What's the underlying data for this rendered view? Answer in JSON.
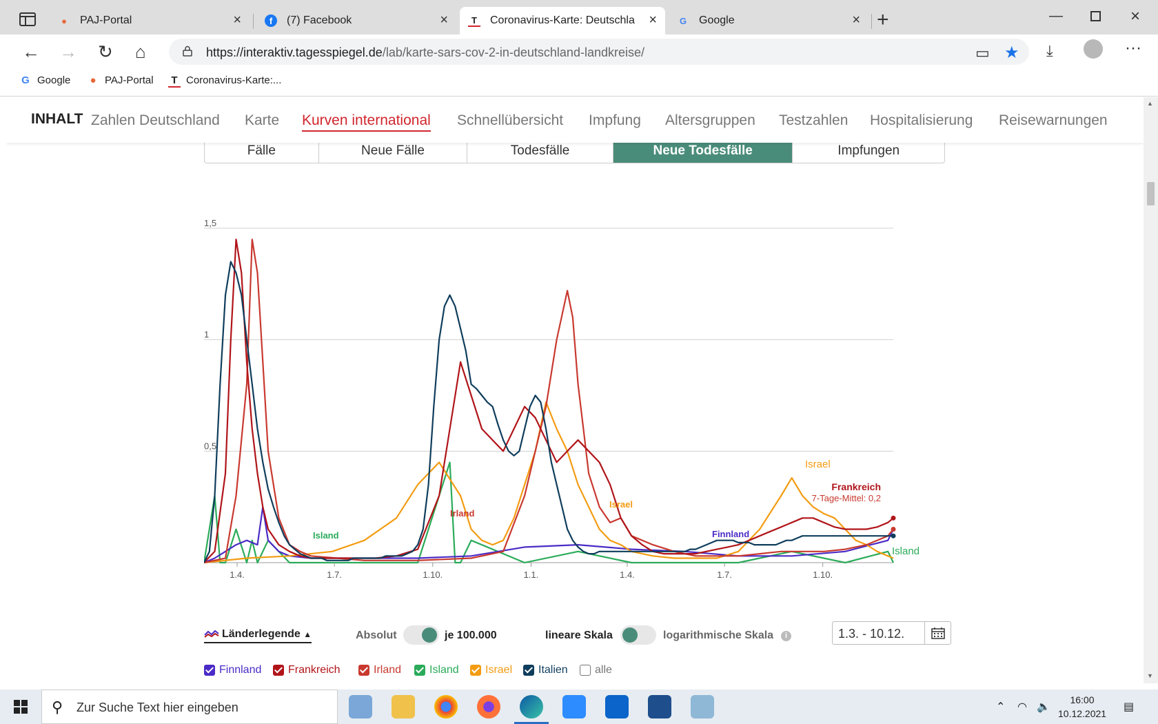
{
  "browser": {
    "tabs": [
      {
        "label": "PAJ-Portal",
        "icon": "location-pin-icon",
        "active": false
      },
      {
        "label": "(7) Facebook",
        "icon": "facebook-icon",
        "active": false
      },
      {
        "label": "Coronavirus-Karte: Deutschlandw",
        "icon": "tagesspiegel-icon",
        "active": true
      },
      {
        "label": "Google",
        "icon": "google-icon",
        "active": false
      }
    ],
    "url_host": "https://interaktiv.tagesspiegel.de",
    "url_path": "/lab/karte-sars-cov-2-in-deutschland-landkreise/",
    "bookmarks": [
      {
        "label": "Google",
        "icon": "google-icon"
      },
      {
        "label": "PAJ-Portal",
        "icon": "location-pin-icon"
      },
      {
        "label": "Coronavirus-Karte:...",
        "icon": "tagesspiegel-icon"
      }
    ]
  },
  "topnav": {
    "brand": "INHALT",
    "items": [
      "Zahlen Deutschland",
      "Karte",
      "Kurven international",
      "Schnellübersicht",
      "Impfung",
      "Altersgruppen",
      "Testzahlen",
      "Hospitalisierung",
      "Reisewarnungen"
    ],
    "active_index": 2
  },
  "segtabs": {
    "items": [
      "Fälle",
      "Neue Fälle",
      "Todesfälle",
      "Neue Todesfälle",
      "Impfungen"
    ],
    "active_index": 3
  },
  "chart_data": {
    "type": "line",
    "title": "",
    "xlabel": "",
    "ylabel": "",
    "ylim": [
      0,
      1.5
    ],
    "y_ticks": [
      "0,5",
      "1",
      "1,5"
    ],
    "x_ticks": [
      "1.4.",
      "1.7.",
      "1.10.",
      "1.1.",
      "1.4.",
      "1.7.",
      "1.10."
    ],
    "grid": true,
    "series": [
      {
        "name": "Italien",
        "color": "#0f3d5c",
        "x": [
          0,
          5,
          10,
          15,
          20,
          25,
          30,
          35,
          40,
          45,
          50,
          55,
          60,
          65,
          70,
          75,
          80,
          85,
          90,
          95,
          100,
          105,
          110,
          115,
          120,
          125,
          130,
          135,
          140,
          145,
          150,
          155,
          160,
          165,
          170,
          175,
          180,
          185,
          190,
          195,
          200,
          205,
          210,
          215,
          220,
          225,
          230,
          235,
          240,
          245,
          250,
          255,
          260,
          265,
          270,
          275,
          280,
          285,
          290,
          295,
          300,
          305,
          310,
          315,
          320,
          325,
          330,
          335,
          340,
          345,
          350,
          355,
          360,
          365,
          370,
          375,
          380,
          385,
          390,
          395,
          400,
          405,
          410,
          415,
          420,
          425,
          430,
          435,
          440,
          445,
          450,
          455,
          460,
          465,
          470,
          475,
          480,
          485,
          490,
          495,
          500,
          505,
          510,
          515,
          520,
          525,
          530,
          535,
          540,
          545,
          550,
          555,
          560,
          565,
          570,
          575,
          580,
          585,
          590,
          595,
          600,
          605,
          610,
          615,
          620,
          625,
          630,
          635,
          640,
          645
        ],
        "y": [
          0,
          0.05,
          0.3,
          0.8,
          1.2,
          1.35,
          1.3,
          1.2,
          1.0,
          0.8,
          0.6,
          0.45,
          0.33,
          0.25,
          0.18,
          0.12,
          0.08,
          0.06,
          0.04,
          0.03,
          0.02,
          0.02,
          0.02,
          0.01,
          0.01,
          0.01,
          0.01,
          0.01,
          0.02,
          0.02,
          0.02,
          0.02,
          0.02,
          0.02,
          0.03,
          0.03,
          0.03,
          0.03,
          0.04,
          0.05,
          0.08,
          0.15,
          0.35,
          0.7,
          1.0,
          1.15,
          1.2,
          1.15,
          1.05,
          0.95,
          0.8,
          0.78,
          0.75,
          0.72,
          0.7,
          0.62,
          0.55,
          0.5,
          0.48,
          0.5,
          0.6,
          0.7,
          0.75,
          0.72,
          0.6,
          0.45,
          0.35,
          0.25,
          0.15,
          0.1,
          0.07,
          0.05,
          0.04,
          0.04,
          0.05,
          0.05,
          0.05,
          0.05,
          0.05,
          0.05,
          0.05,
          0.05,
          0.05,
          0.05,
          0.05,
          0.05,
          0.05,
          0.05,
          0.05,
          0.05,
          0.05,
          0.06,
          0.06,
          0.07,
          0.08,
          0.09,
          0.1,
          0.1,
          0.1,
          0.1,
          0.09,
          0.09,
          0.09,
          0.08,
          0.08,
          0.08,
          0.08,
          0.08,
          0.09,
          0.1,
          0.1,
          0.11,
          0.12,
          0.12,
          0.12,
          0.12,
          0.12,
          0.12,
          0.12,
          0.12,
          0.12,
          0.12,
          0.12,
          0.12,
          0.12,
          0.12,
          0.12,
          0.12,
          0.12,
          0.12
        ]
      },
      {
        "name": "Frankreich",
        "color": "#b01419",
        "x": [
          0,
          10,
          20,
          25,
          30,
          35,
          40,
          45,
          50,
          55,
          60,
          70,
          80,
          90,
          100,
          120,
          140,
          160,
          180,
          200,
          220,
          230,
          240,
          250,
          260,
          270,
          280,
          290,
          300,
          310,
          320,
          330,
          340,
          350,
          360,
          370,
          380,
          390,
          400,
          410,
          420,
          430,
          440,
          450,
          460,
          470,
          480,
          490,
          500,
          510,
          520,
          530,
          540,
          550,
          560,
          570,
          580,
          590,
          600,
          610,
          620,
          630,
          640,
          645
        ],
        "y": [
          0,
          0.05,
          0.4,
          1.0,
          1.45,
          1.3,
          0.9,
          0.6,
          0.4,
          0.25,
          0.15,
          0.08,
          0.05,
          0.03,
          0.02,
          0.02,
          0.02,
          0.02,
          0.03,
          0.06,
          0.3,
          0.6,
          0.9,
          0.75,
          0.6,
          0.55,
          0.5,
          0.6,
          0.7,
          0.65,
          0.55,
          0.45,
          0.5,
          0.55,
          0.5,
          0.45,
          0.35,
          0.2,
          0.12,
          0.08,
          0.05,
          0.04,
          0.04,
          0.04,
          0.04,
          0.05,
          0.06,
          0.07,
          0.08,
          0.1,
          0.12,
          0.14,
          0.16,
          0.18,
          0.2,
          0.2,
          0.18,
          0.16,
          0.15,
          0.15,
          0.15,
          0.16,
          0.18,
          0.2
        ]
      },
      {
        "name": "Irland",
        "color": "#c8392f",
        "x": [
          0,
          20,
          30,
          40,
          45,
          50,
          55,
          60,
          70,
          80,
          90,
          100,
          150,
          200,
          250,
          280,
          300,
          320,
          330,
          340,
          345,
          350,
          355,
          360,
          370,
          380,
          390,
          400,
          420,
          440,
          460,
          480,
          500,
          520,
          540,
          560,
          580,
          600,
          620,
          640,
          645
        ],
        "y": [
          0,
          0.02,
          0.3,
          0.8,
          1.45,
          1.3,
          0.9,
          0.5,
          0.2,
          0.08,
          0.05,
          0.03,
          0.01,
          0.01,
          0.02,
          0.05,
          0.3,
          0.7,
          1.0,
          1.22,
          1.1,
          0.8,
          0.6,
          0.4,
          0.25,
          0.18,
          0.2,
          0.12,
          0.08,
          0.05,
          0.03,
          0.03,
          0.03,
          0.04,
          0.05,
          0.05,
          0.05,
          0.06,
          0.08,
          0.12,
          0.15
        ]
      },
      {
        "name": "Israel",
        "color": "#f39c12",
        "x": [
          0,
          40,
          80,
          120,
          150,
          180,
          200,
          220,
          240,
          250,
          260,
          270,
          280,
          290,
          300,
          310,
          320,
          330,
          340,
          350,
          360,
          370,
          380,
          390,
          400,
          420,
          440,
          460,
          480,
          500,
          520,
          540,
          550,
          560,
          570,
          580,
          590,
          600,
          610,
          620,
          630,
          640,
          645
        ],
        "y": [
          0,
          0.02,
          0.03,
          0.05,
          0.1,
          0.2,
          0.35,
          0.45,
          0.3,
          0.15,
          0.1,
          0.08,
          0.1,
          0.2,
          0.35,
          0.5,
          0.72,
          0.6,
          0.5,
          0.35,
          0.25,
          0.15,
          0.1,
          0.08,
          0.05,
          0.03,
          0.02,
          0.02,
          0.02,
          0.05,
          0.15,
          0.3,
          0.38,
          0.3,
          0.25,
          0.22,
          0.2,
          0.15,
          0.1,
          0.08,
          0.05,
          0.03,
          0.02
        ]
      },
      {
        "name": "Finnland",
        "color": "#4b2bc6",
        "x": [
          0,
          10,
          20,
          30,
          40,
          50,
          55,
          60,
          70,
          80,
          100,
          150,
          200,
          250,
          300,
          350,
          400,
          450,
          500,
          550,
          600,
          640,
          645
        ],
        "y": [
          0,
          0.02,
          0.05,
          0.08,
          0.1,
          0.08,
          0.25,
          0.1,
          0.05,
          0.03,
          0.02,
          0.02,
          0.02,
          0.03,
          0.07,
          0.08,
          0.06,
          0.05,
          0.03,
          0.03,
          0.05,
          0.1,
          0.15
        ]
      },
      {
        "name": "Island",
        "color": "#2bab5a",
        "x": [
          0,
          10,
          15,
          20,
          30,
          40,
          45,
          50,
          60,
          80,
          100,
          150,
          200,
          230,
          235,
          240,
          250,
          300,
          350,
          400,
          450,
          500,
          550,
          600,
          640,
          645
        ],
        "y": [
          0,
          0.3,
          0,
          0,
          0.15,
          0,
          0.1,
          0,
          0.1,
          0,
          0,
          0,
          0,
          0.45,
          0,
          0,
          0.1,
          0,
          0.05,
          0,
          0,
          0,
          0.05,
          0,
          0.05,
          0
        ]
      }
    ],
    "annotations": [
      {
        "text": "Israel",
        "color": "#f39c12"
      },
      {
        "text": "Frankreich",
        "color": "#b01419"
      },
      {
        "text": "7-Tage-Mittel: 0,2",
        "color": "#c8392f"
      },
      {
        "text": "Island",
        "color": "#2bab5a"
      },
      {
        "text": "Irland",
        "color": "#c8392f"
      },
      {
        "text": "Israel",
        "color": "#f39c12"
      },
      {
        "text": "Finnland",
        "color": "#4b2bc6"
      },
      {
        "text": "Island",
        "color": "#2bab5a"
      }
    ]
  },
  "controls": {
    "legend_toggle": "Länderlegende",
    "absolute_label": "Absolut",
    "per100k_label": "je 100.000",
    "linear_label": "lineare Skala",
    "log_label": "logarithmische Skala",
    "date_range": "1.3. - 10.12."
  },
  "countries": [
    {
      "name": "Finnland",
      "color": "#4b2bc6",
      "checked": true
    },
    {
      "name": "Frankreich",
      "color": "#b01419",
      "checked": true
    },
    {
      "name": "Irland",
      "color": "#c8392f",
      "checked": true
    },
    {
      "name": "Island",
      "color": "#2bab5a",
      "checked": true
    },
    {
      "name": "Israel",
      "color": "#f39c12",
      "checked": true
    },
    {
      "name": "Italien",
      "color": "#0f3d5c",
      "checked": true
    },
    {
      "name": "alle",
      "color": "#777777",
      "checked": false
    }
  ],
  "taskbar": {
    "search_placeholder": "Zur Suche Text hier eingeben",
    "time": "16:00",
    "date": "10.12.2021"
  }
}
